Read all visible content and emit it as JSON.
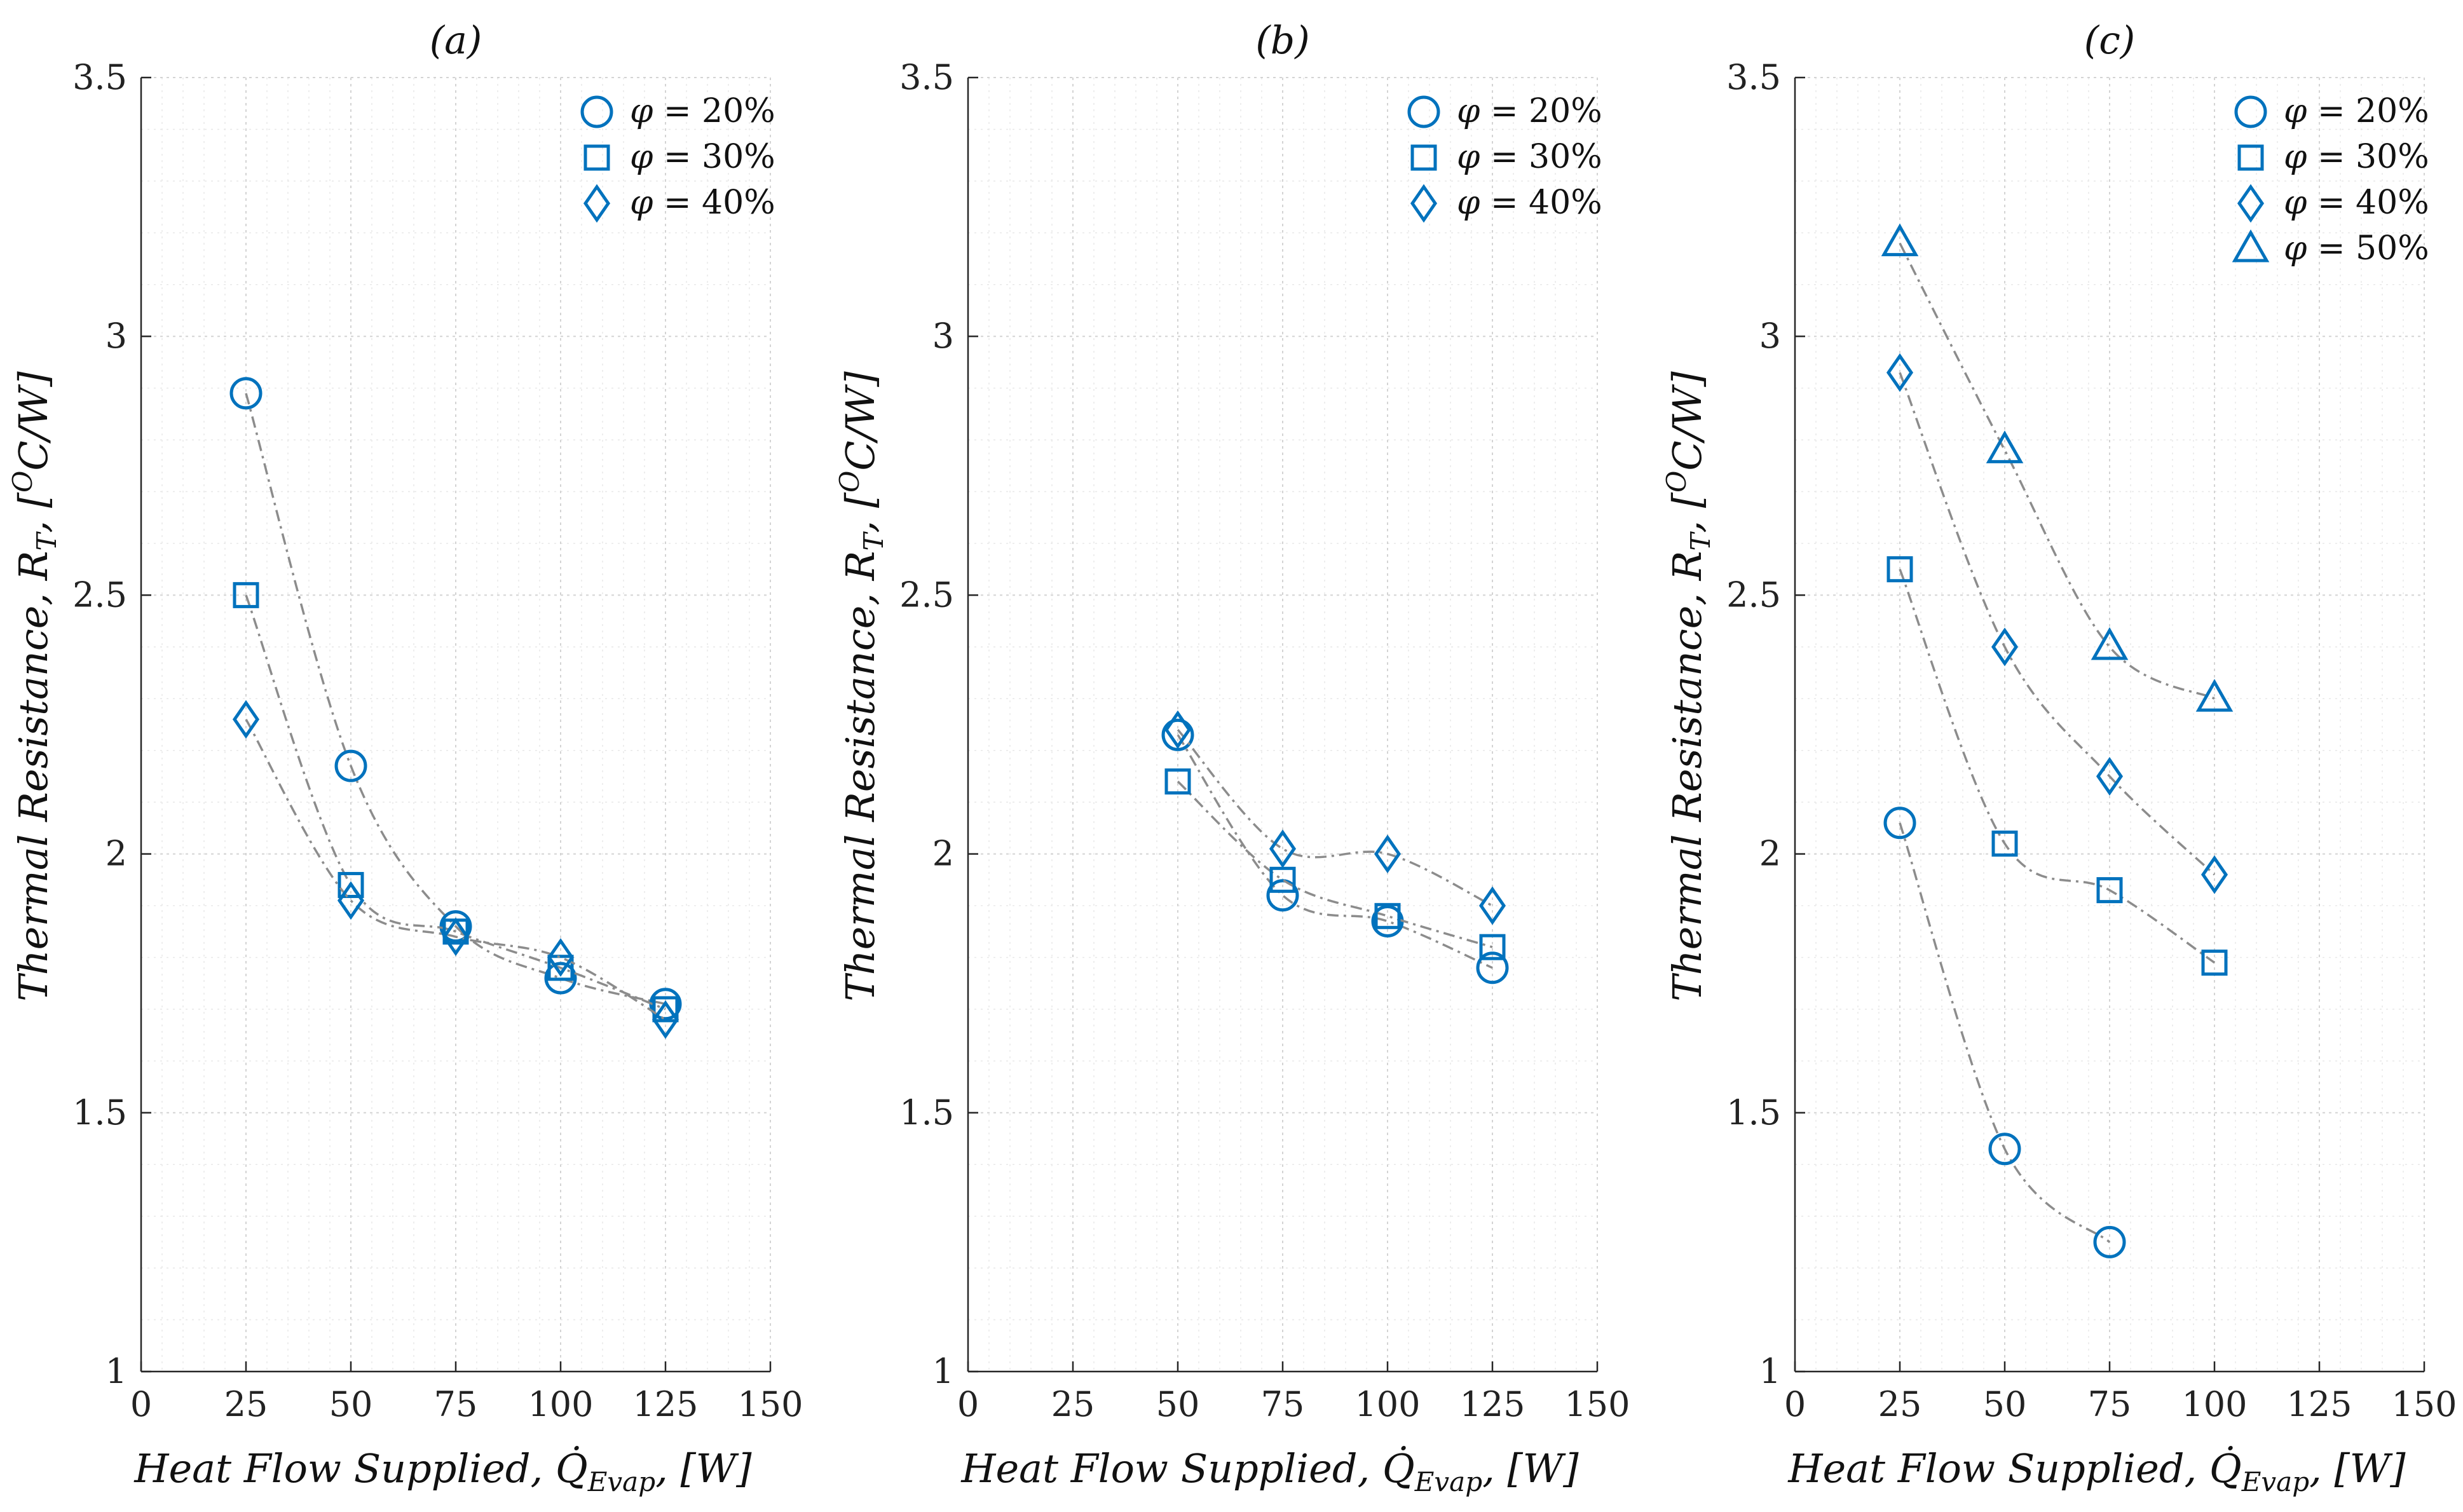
{
  "x_axis_label": "Heat Flow Supplied, Q̇",
  "x_axis_label_sub": "Evap",
  "x_axis_label_unit": ", [W]",
  "y_axis_label": "Thermal Resistance, R",
  "y_axis_label_sub": "T",
  "y_axis_label_unit": ", [",
  "y_axis_label_sup": "O",
  "y_axis_label_end": "C/W]",
  "marker_color": "#0072BD",
  "fit_line_color": "#8c8c8c",
  "legend_symbol": "φ",
  "chart_data": [
    {
      "type": "scatter",
      "title": "(a)",
      "xlim": [
        0,
        150
      ],
      "ylim": [
        1,
        3.5
      ],
      "xticks": [
        0,
        25,
        50,
        75,
        100,
        125,
        150
      ],
      "yticks": [
        1,
        1.5,
        2,
        2.5,
        3,
        3.5
      ],
      "grid": true,
      "legend_position": "top-right",
      "series": [
        {
          "name": "= 20%",
          "marker": "circle",
          "x": [
            25,
            50,
            75,
            100,
            125
          ],
          "y": [
            2.89,
            2.17,
            1.86,
            1.76,
            1.71
          ]
        },
        {
          "name": "= 30%",
          "marker": "square",
          "x": [
            25,
            50,
            75,
            100,
            125
          ],
          "y": [
            2.5,
            1.94,
            1.85,
            1.78,
            1.7
          ]
        },
        {
          "name": "= 40%",
          "marker": "diamond",
          "x": [
            25,
            50,
            75,
            100,
            125
          ],
          "y": [
            2.26,
            1.91,
            1.84,
            1.8,
            1.68
          ]
        }
      ]
    },
    {
      "type": "scatter",
      "title": "(b)",
      "xlim": [
        0,
        150
      ],
      "ylim": [
        1,
        3.5
      ],
      "xticks": [
        0,
        25,
        50,
        75,
        100,
        125,
        150
      ],
      "yticks": [
        1,
        1.5,
        2,
        2.5,
        3,
        3.5
      ],
      "grid": true,
      "legend_position": "top-right",
      "series": [
        {
          "name": "= 20%",
          "marker": "circle",
          "x": [
            50,
            75,
            100,
            125
          ],
          "y": [
            2.23,
            1.92,
            1.87,
            1.78
          ]
        },
        {
          "name": "= 30%",
          "marker": "square",
          "x": [
            50,
            75,
            100,
            125
          ],
          "y": [
            2.14,
            1.95,
            1.88,
            1.82
          ]
        },
        {
          "name": "= 40%",
          "marker": "diamond",
          "x": [
            50,
            75,
            100,
            125
          ],
          "y": [
            2.24,
            2.01,
            2.0,
            1.9
          ]
        }
      ]
    },
    {
      "type": "scatter",
      "title": "(c)",
      "xlim": [
        0,
        150
      ],
      "ylim": [
        1,
        3.5
      ],
      "xticks": [
        0,
        25,
        50,
        75,
        100,
        125,
        150
      ],
      "yticks": [
        1,
        1.5,
        2,
        2.5,
        3,
        3.5
      ],
      "grid": true,
      "legend_position": "top-right",
      "series": [
        {
          "name": "= 20%",
          "marker": "circle",
          "x": [
            25,
            50,
            75
          ],
          "y": [
            2.06,
            1.43,
            1.25
          ]
        },
        {
          "name": "= 30%",
          "marker": "square",
          "x": [
            25,
            50,
            75,
            100
          ],
          "y": [
            2.55,
            2.02,
            1.93,
            1.79
          ]
        },
        {
          "name": "= 40%",
          "marker": "diamond",
          "x": [
            25,
            50,
            75,
            100
          ],
          "y": [
            2.93,
            2.4,
            2.15,
            1.96
          ]
        },
        {
          "name": "= 50%",
          "marker": "triangle",
          "x": [
            25,
            50,
            75,
            100
          ],
          "y": [
            3.18,
            2.78,
            2.4,
            2.3
          ]
        }
      ]
    }
  ]
}
